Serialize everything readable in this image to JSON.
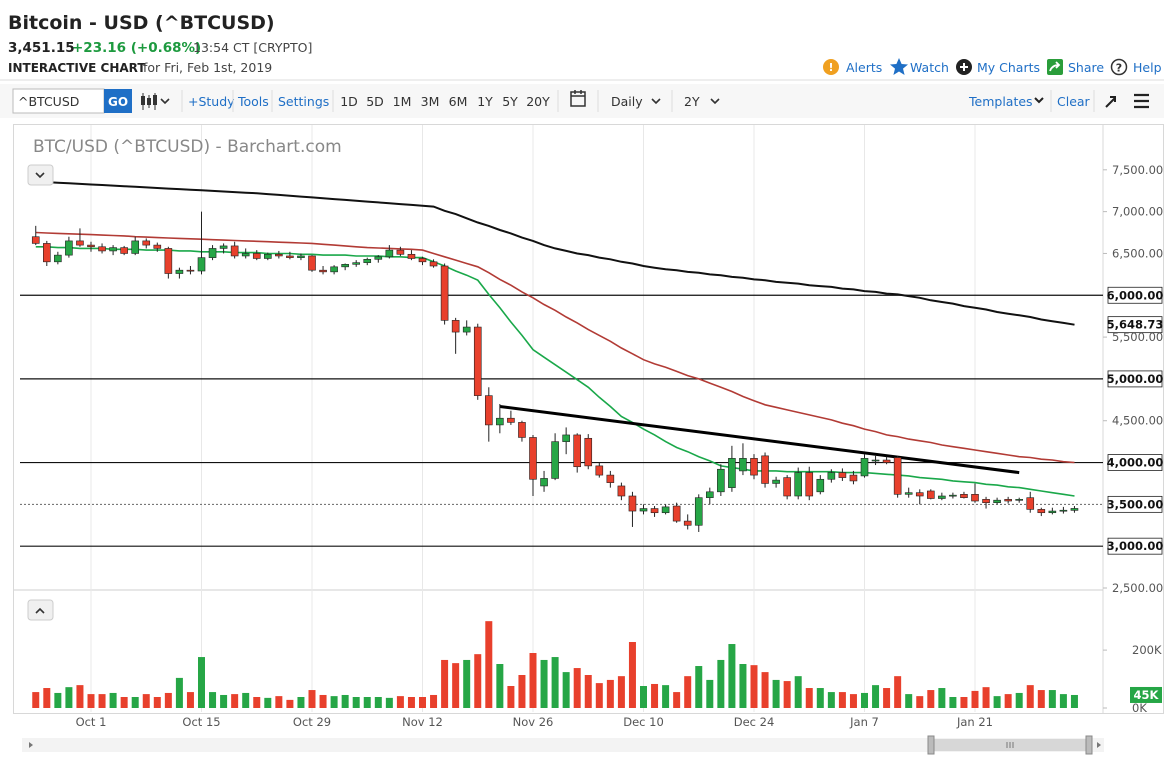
{
  "header": {
    "title": "Bitcoin - USD (^BTCUSD)",
    "last": "3,451.15",
    "change": "+23.16 (+0.68%)",
    "time": "13:54 CT [CRYPTO]",
    "chart_label": "INTERACTIVE CHART",
    "date": "for Fri, Feb 1st, 2019",
    "links": [
      "Alerts",
      "Watch",
      "My Charts",
      "Share",
      "Help"
    ]
  },
  "toolbar": {
    "symbol": "^BTCUSD",
    "go": "GO",
    "items": [
      "+Study",
      "Tools",
      "Settings"
    ],
    "periods": [
      "1D",
      "5D",
      "1M",
      "3M",
      "6M",
      "1Y",
      "5Y",
      "20Y"
    ],
    "interval": "Daily",
    "range": "2Y",
    "templates": "Templates",
    "clear": "Clear"
  },
  "chart_data": {
    "type": "candlestick",
    "watermark": "BTC/USD (^BTCUSD) - Barchart.com",
    "categories": [
      null,
      null,
      null,
      null,
      null,
      "Oct 1",
      null,
      null,
      null,
      null,
      null,
      null,
      null,
      null,
      null,
      "Oct 15",
      null,
      null,
      null,
      null,
      null,
      null,
      null,
      null,
      null,
      "Oct 29",
      null,
      null,
      null,
      null,
      null,
      null,
      null,
      null,
      null,
      "Nov 12",
      null,
      null,
      null,
      null,
      null,
      null,
      null,
      null,
      null,
      "Nov 26",
      null,
      null,
      null,
      null,
      null,
      null,
      null,
      null,
      null,
      "Dec 10",
      null,
      null,
      null,
      null,
      null,
      null,
      null,
      null,
      null,
      "Dec 24",
      null,
      null,
      null,
      null,
      null,
      null,
      null,
      null,
      null,
      "Jan 7",
      null,
      null,
      null,
      null,
      null,
      null,
      null,
      null,
      null,
      "Jan 21",
      null,
      null,
      null,
      null,
      null,
      null,
      null,
      null,
      null
    ],
    "open": [
      6700,
      6620,
      6400,
      6480,
      6650,
      6600,
      6580,
      6530,
      6570,
      6500,
      6650,
      6600,
      6560,
      6260,
      6300,
      6290,
      6450,
      6560,
      6590,
      6470,
      6500,
      6440,
      6490,
      6470,
      6450,
      6470,
      6300,
      6280,
      6340,
      6370,
      6390,
      6430,
      6460,
      6540,
      6490,
      6440,
      6400,
      6350,
      5700,
      5560,
      5620,
      4800,
      4450,
      4530,
      4480,
      4300,
      3720,
      3810,
      4250,
      4330,
      4290,
      3960,
      3850,
      3720,
      3600,
      3420,
      3450,
      3400,
      3480,
      3300,
      3250,
      3580,
      3650,
      3700,
      3900,
      4050,
      4080,
      3750,
      3820,
      3600,
      3880,
      3650,
      3800,
      3880,
      3850,
      3840,
      4020,
      4030,
      4060,
      3620,
      3640,
      3660,
      3570,
      3600,
      3620,
      3620,
      3560,
      3520,
      3560,
      3550,
      3580,
      3440,
      3400,
      3420,
      3428
    ],
    "high": [
      6830,
      6650,
      6520,
      6700,
      6800,
      6640,
      6620,
      6600,
      6590,
      6700,
      6680,
      6630,
      6580,
      6330,
      6350,
      7000,
      6600,
      6620,
      6640,
      6560,
      6540,
      6510,
      6530,
      6520,
      6500,
      6480,
      6350,
      6360,
      6380,
      6420,
      6450,
      6480,
      6600,
      6580,
      6540,
      6460,
      6430,
      6380,
      5730,
      5700,
      5660,
      4900,
      4700,
      4620,
      4500,
      4330,
      3900,
      4350,
      4420,
      4350,
      4340,
      4000,
      3900,
      3760,
      3650,
      3500,
      3480,
      3500,
      3520,
      3380,
      3620,
      3700,
      3980,
      4200,
      4230,
      4100,
      4120,
      3830,
      3850,
      3940,
      3950,
      3850,
      3920,
      3930,
      3900,
      4100,
      4080,
      4070,
      4080,
      3700,
      3680,
      3680,
      3640,
      3640,
      3650,
      3750,
      3590,
      3580,
      3590,
      3580,
      3650,
      3460,
      3460,
      3470,
      3480
    ],
    "low": [
      6600,
      6350,
      6370,
      6450,
      6580,
      6520,
      6500,
      6480,
      6480,
      6480,
      6560,
      6520,
      6200,
      6200,
      6250,
      6250,
      6420,
      6500,
      6440,
      6440,
      6420,
      6420,
      6440,
      6430,
      6420,
      6280,
      6250,
      6250,
      6300,
      6340,
      6360,
      6390,
      6440,
      6470,
      6420,
      6360,
      6330,
      5650,
      5300,
      5520,
      4750,
      4250,
      4350,
      4450,
      4250,
      3600,
      3650,
      3790,
      4100,
      3880,
      3920,
      3820,
      3700,
      3550,
      3230,
      3380,
      3350,
      3380,
      3280,
      3200,
      3170,
      3500,
      3600,
      3650,
      3850,
      3800,
      3700,
      3700,
      3560,
      3560,
      3550,
      3620,
      3760,
      3780,
      3740,
      3820,
      3970,
      3980,
      3580,
      3580,
      3500,
      3560,
      3550,
      3570,
      3570,
      3520,
      3450,
      3500,
      3510,
      3520,
      3400,
      3360,
      3380,
      3390,
      3400
    ],
    "close": [
      6620,
      6400,
      6480,
      6650,
      6600,
      6580,
      6530,
      6570,
      6500,
      6650,
      6600,
      6560,
      6260,
      6300,
      6290,
      6450,
      6560,
      6590,
      6470,
      6500,
      6440,
      6490,
      6470,
      6450,
      6470,
      6300,
      6280,
      6340,
      6370,
      6390,
      6430,
      6460,
      6540,
      6490,
      6440,
      6400,
      6350,
      5700,
      5560,
      5620,
      4800,
      4450,
      4530,
      4480,
      4300,
      3800,
      3810,
      4250,
      4330,
      3950,
      3960,
      3850,
      3760,
      3600,
      3420,
      3450,
      3400,
      3470,
      3300,
      3250,
      3580,
      3650,
      3920,
      4050,
      4050,
      3850,
      3750,
      3790,
      3600,
      3880,
      3600,
      3800,
      3880,
      3820,
      3780,
      4050,
      4030,
      4000,
      3620,
      3640,
      3600,
      3570,
      3600,
      3610,
      3580,
      3540,
      3520,
      3550,
      3540,
      3560,
      3440,
      3400,
      3420,
      3430,
      3451.15
    ],
    "up_color": "#26a646",
    "down_color": "#e8402c",
    "moving_averages": [
      {
        "color": "#1aa84a",
        "values": [
          6580,
          6580,
          6570,
          6570,
          6560,
          6560,
          6560,
          6550,
          6550,
          6550,
          6540,
          6540,
          6540,
          6530,
          6530,
          6520,
          6520,
          6520,
          6510,
          6510,
          6510,
          6500,
          6500,
          6500,
          6490,
          6490,
          6480,
          6480,
          6480,
          6470,
          6470,
          6470,
          6460,
          6460,
          6450,
          6450,
          6400,
          6350,
          6290,
          6240,
          6180,
          6010,
          5850,
          5680,
          5520,
          5350,
          5260,
          5170,
          5080,
          4990,
          4900,
          4780,
          4670,
          4550,
          4480,
          4400,
          4330,
          4250,
          4180,
          4130,
          4070,
          4020,
          3960,
          3940,
          3920,
          3900,
          3900,
          3900,
          3890,
          3890,
          3890,
          3890,
          3890,
          3880,
          3880,
          3880,
          3870,
          3860,
          3850,
          3840,
          3820,
          3810,
          3800,
          3780,
          3770,
          3760,
          3740,
          3730,
          3710,
          3700,
          3680,
          3660,
          3640,
          3620,
          3600
        ]
      },
      {
        "color": "#b23b35",
        "values": [
          6750,
          6745,
          6740,
          6735,
          6730,
          6725,
          6720,
          6715,
          6710,
          6700,
          6695,
          6690,
          6685,
          6680,
          6675,
          6670,
          6665,
          6660,
          6655,
          6650,
          6645,
          6640,
          6635,
          6630,
          6625,
          6620,
          6610,
          6600,
          6590,
          6580,
          6570,
          6565,
          6560,
          6555,
          6550,
          6540,
          6500,
          6460,
          6420,
          6380,
          6340,
          6270,
          6190,
          6120,
          6040,
          5970,
          5890,
          5820,
          5740,
          5670,
          5590,
          5520,
          5450,
          5370,
          5300,
          5230,
          5180,
          5140,
          5090,
          5040,
          5000,
          4950,
          4900,
          4850,
          4790,
          4740,
          4690,
          4660,
          4630,
          4600,
          4570,
          4540,
          4510,
          4470,
          4440,
          4400,
          4370,
          4330,
          4310,
          4280,
          4260,
          4240,
          4210,
          4190,
          4170,
          4150,
          4130,
          4110,
          4090,
          4070,
          4060,
          4040,
          4030,
          4010,
          4000
        ]
      },
      {
        "color": "#111111",
        "last_label": "5,648.73",
        "values": [
          7360,
          7353,
          7346,
          7339,
          7332,
          7325,
          7318,
          7311,
          7304,
          7297,
          7290,
          7283,
          7276,
          7269,
          7262,
          7255,
          7248,
          7241,
          7234,
          7227,
          7220,
          7210,
          7200,
          7190,
          7180,
          7170,
          7160,
          7150,
          7140,
          7130,
          7120,
          7110,
          7100,
          7090,
          7080,
          7070,
          7060,
          7010,
          6970,
          6920,
          6870,
          6830,
          6780,
          6740,
          6690,
          6650,
          6600,
          6560,
          6530,
          6500,
          6480,
          6450,
          6430,
          6400,
          6380,
          6350,
          6330,
          6310,
          6300,
          6280,
          6270,
          6250,
          6240,
          6220,
          6210,
          6190,
          6180,
          6160,
          6150,
          6140,
          6120,
          6110,
          6100,
          6080,
          6070,
          6050,
          6040,
          6020,
          6010,
          5990,
          5970,
          5940,
          5920,
          5900,
          5870,
          5850,
          5830,
          5800,
          5780,
          5760,
          5740,
          5710,
          5690,
          5670,
          5648.73
        ]
      }
    ],
    "levels": [
      {
        "value": 6000,
        "label": "6,000.00",
        "style": "solid"
      },
      {
        "value": 5000,
        "label": "5,000.00",
        "style": "solid"
      },
      {
        "value": 4000,
        "label": "4,000.00",
        "style": "solid"
      },
      {
        "value": 3500,
        "label": "3,500.00",
        "style": "dashed"
      },
      {
        "value": 3000,
        "label": "3,000.00",
        "style": "solid"
      }
    ],
    "trend_line": [
      4670,
      3880
    ],
    "ylim": [
      2500,
      8000
    ],
    "yticks": [
      {
        "value": 2500,
        "label": "2,500.00"
      },
      {
        "value": 4500,
        "label": "4,500.00"
      },
      {
        "value": 5500,
        "label": "5,500.00"
      },
      {
        "value": 6500,
        "label": "6,500.00"
      },
      {
        "value": 7000,
        "label": "7,000.00"
      },
      {
        "value": 7500,
        "label": "7,500.00"
      }
    ],
    "grid": "x",
    "volume": {
      "values": [
        55000,
        69000,
        52000,
        72000,
        79000,
        48000,
        48000,
        52000,
        38000,
        38000,
        48000,
        38000,
        52000,
        104000,
        55000,
        176000,
        55000,
        45000,
        48000,
        52000,
        38000,
        35000,
        41000,
        28000,
        38000,
        62000,
        45000,
        41000,
        45000,
        38000,
        38000,
        38000,
        35000,
        41000,
        38000,
        38000,
        45000,
        166000,
        155000,
        166000,
        186000,
        300000,
        152000,
        76000,
        114000,
        190000,
        166000,
        176000,
        124000,
        138000,
        114000,
        86000,
        97000,
        110000,
        228000,
        76000,
        83000,
        79000,
        55000,
        110000,
        145000,
        97000,
        166000,
        221000,
        152000,
        148000,
        124000,
        97000,
        93000,
        110000,
        69000,
        69000,
        55000,
        55000,
        48000,
        52000,
        79000,
        69000,
        110000,
        48000,
        41000,
        62000,
        69000,
        38000,
        38000,
        59000,
        72000,
        41000,
        48000,
        52000,
        79000,
        62000,
        62000,
        48000,
        45000
      ],
      "last_label": "45K",
      "ylim": [
        0,
        380000
      ],
      "yticks": [
        {
          "value": 200000,
          "label": "200K"
        },
        {
          "value": 0,
          "label": "0K"
        }
      ]
    }
  }
}
